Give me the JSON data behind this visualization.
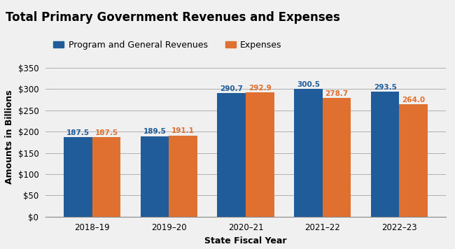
{
  "title": "Total Primary Government Revenues and Expenses",
  "categories": [
    "2018–19",
    "2019–20",
    "2020–21",
    "2021–22",
    "2022–23"
  ],
  "revenues": [
    187.5,
    189.5,
    290.7,
    300.5,
    293.5
  ],
  "expenses": [
    187.5,
    191.1,
    292.9,
    278.7,
    264.0
  ],
  "revenue_color": "#1F5C99",
  "expense_color": "#E07030",
  "ylabel": "Amounts in Billions",
  "xlabel": "State Fiscal Year",
  "legend_labels": [
    "Program and General Revenues",
    "Expenses"
  ],
  "ylim": [
    0,
    375
  ],
  "yticks": [
    0,
    50,
    100,
    150,
    200,
    250,
    300,
    350
  ],
  "ytick_labels": [
    "$0",
    "$50",
    "$100",
    "$150",
    "$200",
    "$250",
    "$300",
    "$350"
  ],
  "header_color": "#DCDCDC",
  "plot_background_color": "#F0F0F0",
  "title_fontsize": 12,
  "label_fontsize": 9,
  "tick_fontsize": 8.5,
  "bar_label_fontsize": 7.5,
  "legend_fontsize": 9
}
